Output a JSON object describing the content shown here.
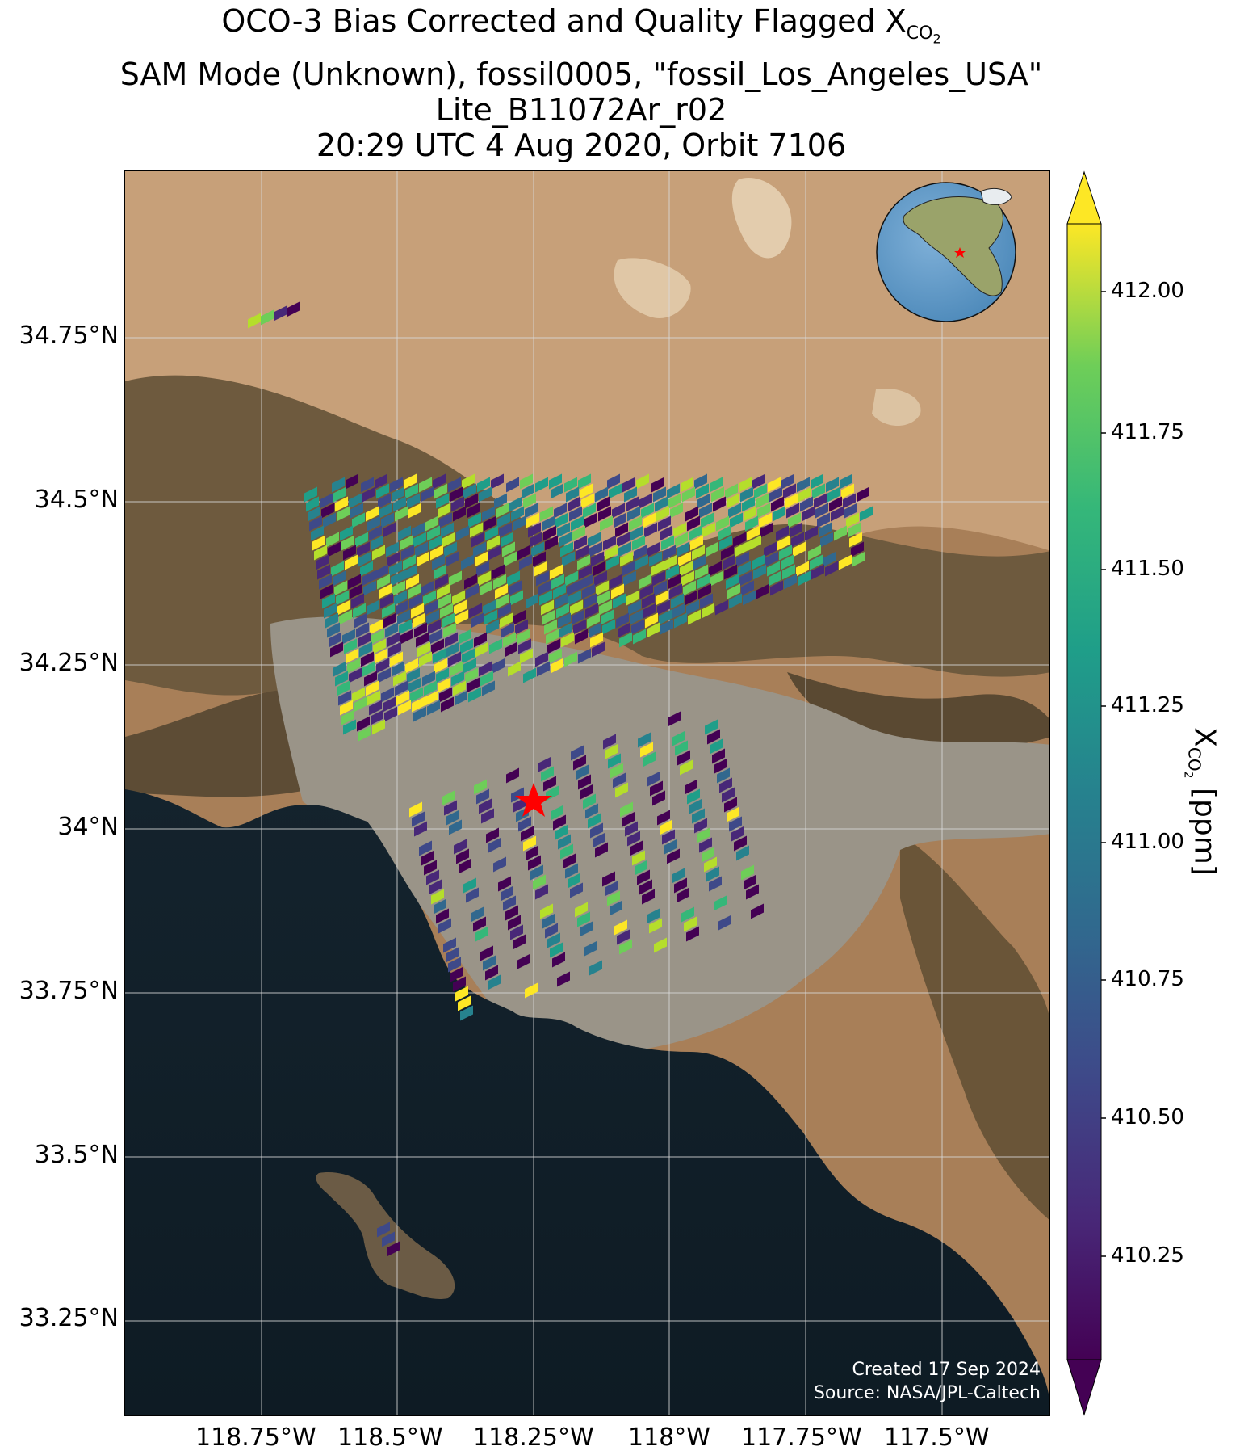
{
  "title": {
    "line1": "OCO-3 Bias Corrected and Quality Flagged X",
    "line1_sub": "CO",
    "line1_sub2": "2",
    "line2": "SAM Mode (Unknown), fossil0005, \"fossil_Los_Angeles_USA\"",
    "line3": "Lite_B11072Ar_r02",
    "line4": "20:29 UTC 4 Aug 2020, Orbit 7106"
  },
  "map": {
    "lat_ticks": [
      "34.75°N",
      "34.5°N",
      "34.25°N",
      "34°N",
      "33.75°N",
      "33.5°N",
      "33.25°N"
    ],
    "lon_ticks": [
      "118.75°W",
      "118.5°W",
      "118.25°W",
      "118°W",
      "117.75°W",
      "117.5°W"
    ],
    "extent": {
      "lon_min": -119.0,
      "lon_max": -117.3,
      "lat_min": 33.1,
      "lat_max": 35.0
    },
    "target_marker": {
      "lon": -118.25,
      "lat": 34.05,
      "color": "#ff0000"
    },
    "credit_line1": "Created 17 Sep 2024",
    "credit_line2": "Source: NASA/JPL-Caltech",
    "inset_globe": {
      "marker_color": "#ff0000"
    }
  },
  "colorbar": {
    "label": "X",
    "label_sub": "CO",
    "label_sub2": "2",
    "label_unit": " [ppm]",
    "ticks": [
      "412.00",
      "411.75",
      "411.50",
      "411.25",
      "411.00",
      "410.75",
      "410.50",
      "410.25"
    ],
    "colormap": "viridis",
    "extend": "both"
  }
}
